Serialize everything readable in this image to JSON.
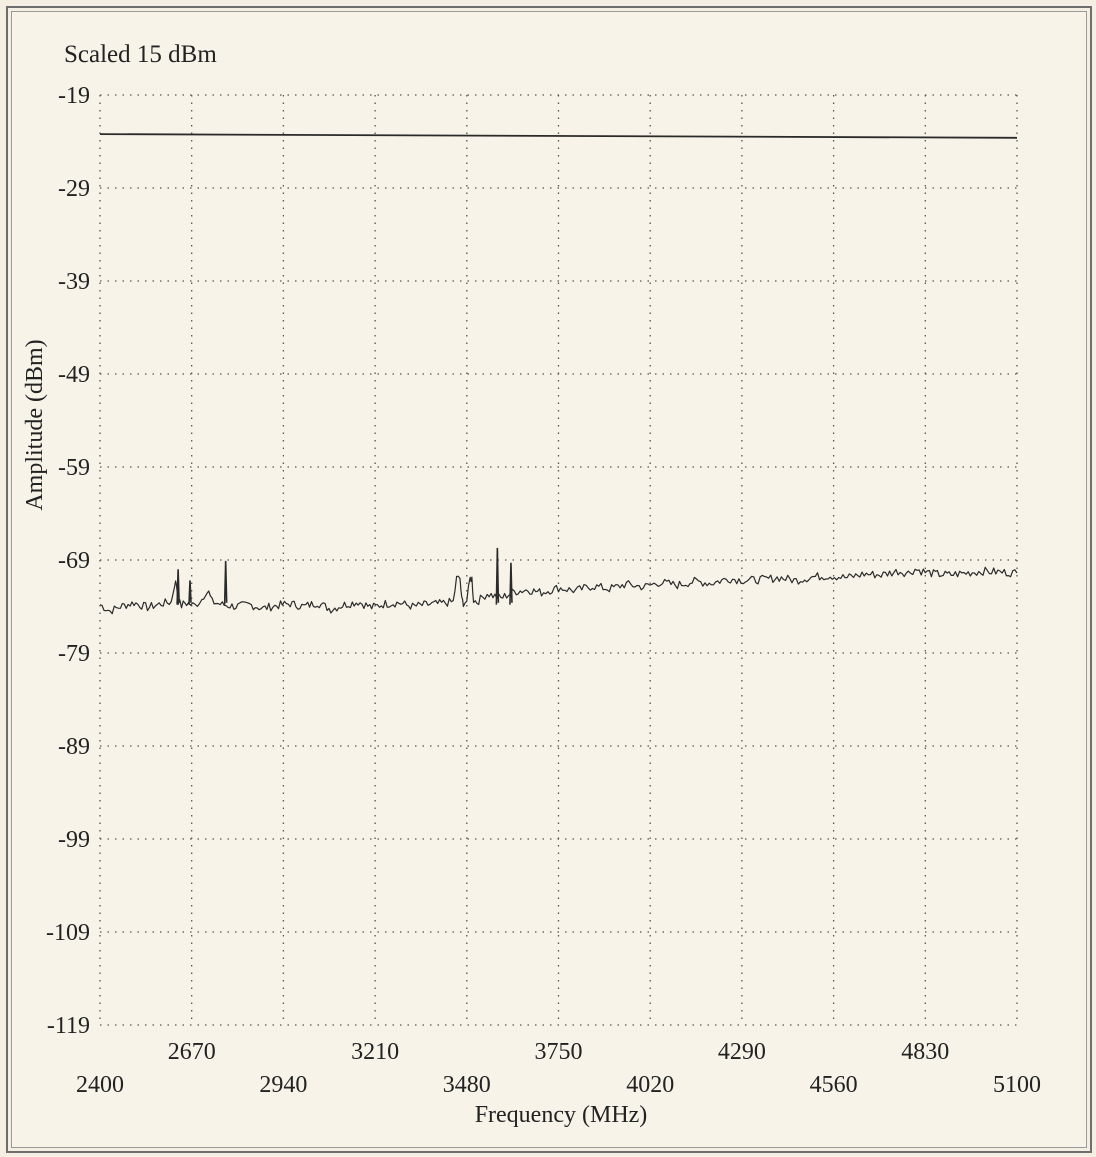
{
  "chart_data": {
    "type": "line",
    "annotation": "Scaled 15 dBm",
    "xlabel": "Frequency (MHz)",
    "ylabel": "Amplitude (dBm)",
    "xlim": [
      2400,
      5100
    ],
    "ylim": [
      -119,
      -19
    ],
    "x_ticks": [
      2400,
      2670,
      2940,
      3210,
      3480,
      3750,
      4020,
      4290,
      4560,
      4830,
      5100
    ],
    "x_tick_labels": [
      "2400",
      "2670",
      "2940",
      "3210",
      "3480",
      "3750",
      "4020",
      "4290",
      "4560",
      "4830",
      "5100"
    ],
    "y_ticks": [
      -19,
      -29,
      -39,
      -49,
      -59,
      -69,
      -79,
      -89,
      -99,
      -109,
      -119
    ],
    "y_tick_labels": [
      "-19",
      "-29",
      "-39",
      "-49",
      "-59",
      "-69",
      "-79",
      "-89",
      "-99",
      "-109",
      "-119"
    ],
    "grid": true,
    "series": [
      {
        "color": "#2a2a2a",
        "x": [
          2400,
          5100
        ],
        "y": [
          -23.2,
          -23.6
        ]
      },
      {
        "color": "#2a2a2a",
        "x": [
          2400,
          2430,
          2460,
          2500,
          2540,
          2580,
          2610,
          2620,
          2625,
          2630,
          2640,
          2650,
          2660,
          2680,
          2700,
          2710,
          2720,
          2730,
          2760,
          2800,
          2840,
          2880,
          2920,
          2960,
          3000,
          3040,
          3080,
          3120,
          3160,
          3200,
          3240,
          3280,
          3320,
          3360,
          3400,
          3440,
          3450,
          3460,
          3465,
          3470,
          3480,
          3490,
          3495,
          3500,
          3510,
          3520,
          3540,
          3580,
          3620,
          3660,
          3700,
          3750,
          3800,
          3850,
          3900,
          3950,
          4000,
          4050,
          4100,
          4150,
          4200,
          4250,
          4300,
          4350,
          4400,
          4450,
          4500,
          4550,
          4600,
          4650,
          4700,
          4750,
          4780,
          4800,
          4830,
          4860,
          4900,
          4950,
          5000,
          5050,
          5100
        ],
        "y": [
          -73.8,
          -74.5,
          -74.0,
          -73.6,
          -74.1,
          -73.7,
          -73.5,
          -71.5,
          -71.5,
          -73.4,
          -73.9,
          -73.6,
          -73.7,
          -73.9,
          -73.2,
          -72.5,
          -72.5,
          -73.5,
          -73.8,
          -74.0,
          -73.8,
          -74.2,
          -73.9,
          -73.7,
          -74.0,
          -73.6,
          -74.3,
          -73.8,
          -73.5,
          -74.1,
          -73.7,
          -73.6,
          -74.0,
          -73.8,
          -73.7,
          -73.5,
          -71.0,
          -71.0,
          -73.3,
          -73.6,
          -73.4,
          -71.0,
          -71.0,
          -73.3,
          -73.5,
          -73.2,
          -72.6,
          -73.1,
          -72.4,
          -72.2,
          -72.5,
          -72.0,
          -72.3,
          -71.8,
          -72.1,
          -71.6,
          -71.9,
          -71.4,
          -71.7,
          -71.3,
          -71.5,
          -71.0,
          -71.2,
          -71.1,
          -70.9,
          -71.2,
          -70.8,
          -70.7,
          -70.9,
          -70.5,
          -70.6,
          -70.2,
          -70.4,
          -70.0,
          -70.3,
          -70.5,
          -70.6,
          -70.4,
          -70.2,
          -70.3,
          -70.4
        ]
      }
    ],
    "spikes": [
      {
        "x": 2630,
        "y": -70.0
      },
      {
        "x": 2665,
        "y": -71.2
      },
      {
        "x": 2770,
        "y": -69.1
      },
      {
        "x": 3570,
        "y": -67.7
      },
      {
        "x": 3610,
        "y": -69.3
      }
    ]
  }
}
